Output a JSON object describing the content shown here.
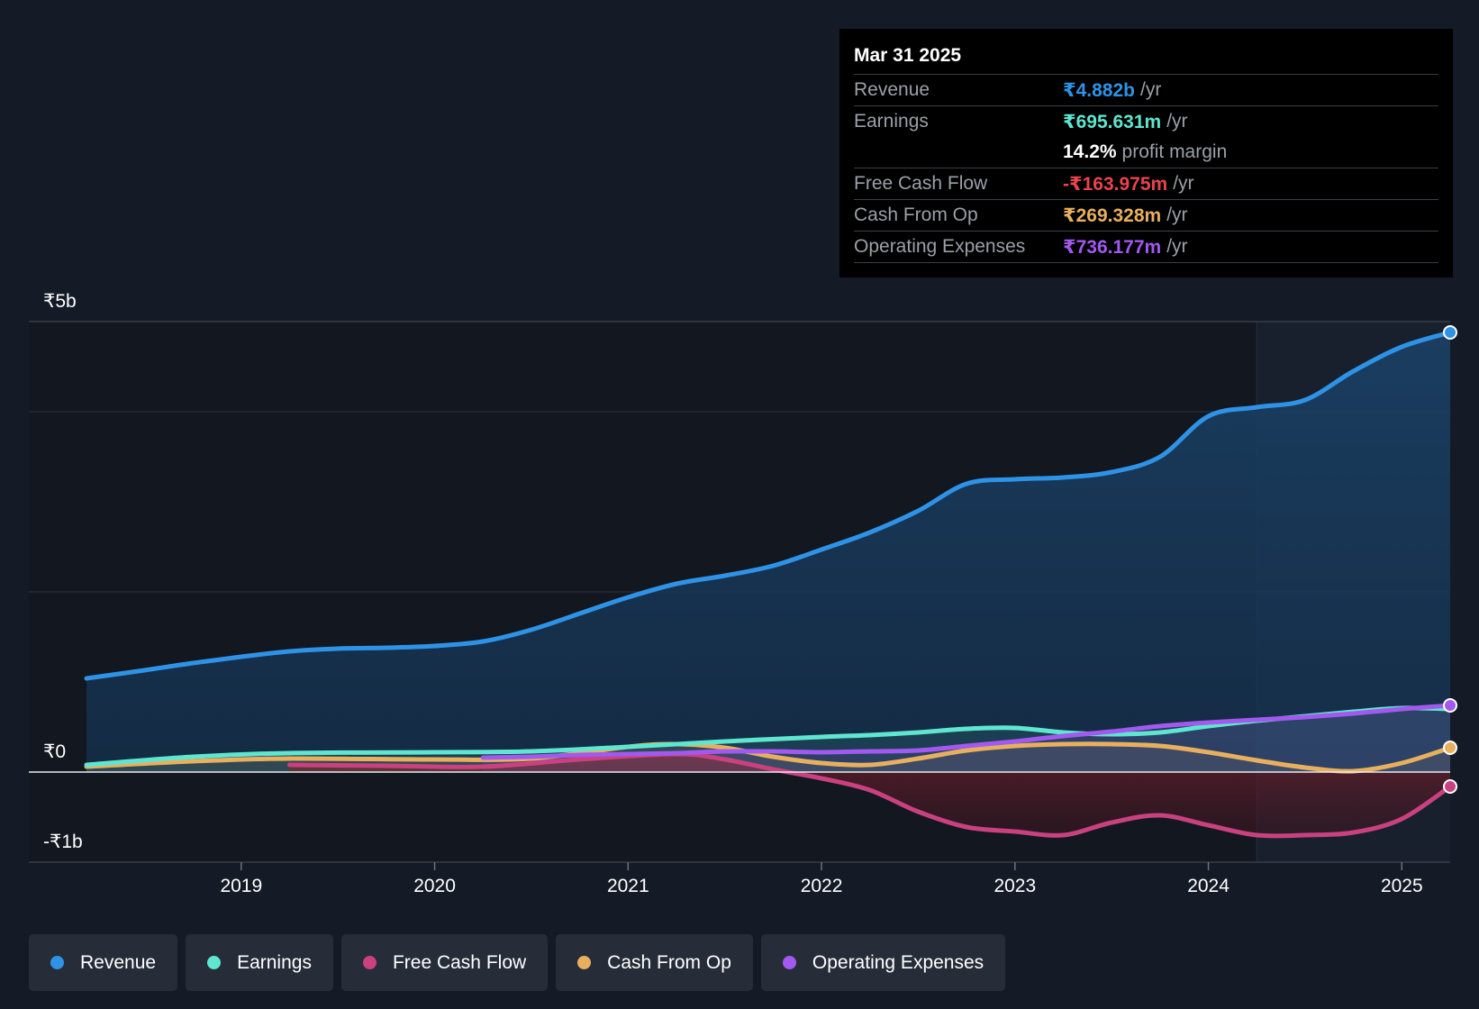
{
  "tooltip": {
    "date": "Mar 31 2025",
    "rows": [
      {
        "label": "Revenue",
        "value": "₹4.882b",
        "unit": "/yr",
        "color": "#2e93e6"
      },
      {
        "label": "Earnings",
        "value": "₹695.631m",
        "unit": "/yr",
        "color": "#5ee6d0"
      },
      {
        "label": "",
        "value": "14.2%",
        "unit": "profit margin",
        "color": "#ffffff"
      },
      {
        "label": "Free Cash Flow",
        "value": "-₹163.975m",
        "unit": "/yr",
        "color": "#e8434f"
      },
      {
        "label": "Cash From Op",
        "value": "₹269.328m",
        "unit": "/yr",
        "color": "#e8b05e"
      },
      {
        "label": "Operating Expenses",
        "value": "₹736.177m",
        "unit": "/yr",
        "color": "#a259f0"
      }
    ]
  },
  "legend": [
    {
      "label": "Revenue",
      "color": "#2e93e6"
    },
    {
      "label": "Earnings",
      "color": "#5ee6d0"
    },
    {
      "label": "Free Cash Flow",
      "color": "#c9417f"
    },
    {
      "label": "Cash From Op",
      "color": "#e8b05e"
    },
    {
      "label": "Operating Expenses",
      "color": "#a259f0"
    }
  ],
  "chart_data": {
    "type": "line",
    "title": "",
    "xlabel": "",
    "ylabel": "",
    "xlim": [
      2018.2,
      2025.25
    ],
    "ylim": [
      -1,
      5
    ],
    "ytick_labels": [
      {
        "value": 5,
        "label": "₹5b"
      },
      {
        "value": 0,
        "label": "₹0"
      },
      {
        "value": -1,
        "label": "-₹1b"
      }
    ],
    "xtick_labels": [
      {
        "value": 2019,
        "label": "2019"
      },
      {
        "value": 2020,
        "label": "2020"
      },
      {
        "value": 2021,
        "label": "2021"
      },
      {
        "value": 2022,
        "label": "2022"
      },
      {
        "value": 2023,
        "label": "2023"
      },
      {
        "value": 2024,
        "label": "2024"
      },
      {
        "value": 2025,
        "label": "2025"
      }
    ],
    "highlight_start": 2024.25,
    "series": [
      {
        "name": "Revenue",
        "color": "#2e93e6",
        "fill": true,
        "x": [
          2018.2,
          2018.5,
          2018.75,
          2019.0,
          2019.25,
          2019.5,
          2019.75,
          2020.0,
          2020.25,
          2020.5,
          2020.75,
          2021.0,
          2021.25,
          2021.5,
          2021.75,
          2022.0,
          2022.25,
          2022.5,
          2022.75,
          2023.0,
          2023.25,
          2023.5,
          2023.75,
          2024.0,
          2024.25,
          2024.5,
          2024.75,
          2025.0,
          2025.25
        ],
        "y": [
          1.04,
          1.13,
          1.21,
          1.28,
          1.34,
          1.37,
          1.38,
          1.4,
          1.45,
          1.58,
          1.76,
          1.94,
          2.09,
          2.18,
          2.29,
          2.47,
          2.66,
          2.9,
          3.2,
          3.25,
          3.27,
          3.33,
          3.5,
          3.95,
          4.05,
          4.13,
          4.45,
          4.72,
          4.88
        ]
      },
      {
        "name": "Earnings",
        "color": "#5ee6d0",
        "fill": true,
        "x": [
          2018.2,
          2018.75,
          2019.25,
          2020.0,
          2020.5,
          2021.0,
          2021.5,
          2022.0,
          2022.25,
          2022.5,
          2022.75,
          2023.0,
          2023.25,
          2023.5,
          2023.75,
          2024.0,
          2024.25,
          2024.5,
          2024.75,
          2025.0,
          2025.25
        ],
        "y": [
          0.08,
          0.17,
          0.21,
          0.22,
          0.23,
          0.28,
          0.34,
          0.39,
          0.41,
          0.44,
          0.48,
          0.49,
          0.44,
          0.42,
          0.44,
          0.51,
          0.57,
          0.62,
          0.67,
          0.71,
          0.7
        ]
      },
      {
        "name": "Free Cash Flow",
        "color": "#c9417f",
        "fill": true,
        "x": [
          2019.25,
          2019.75,
          2020.25,
          2020.75,
          2021.25,
          2021.5,
          2021.75,
          2022.0,
          2022.25,
          2022.5,
          2022.75,
          2023.0,
          2023.25,
          2023.5,
          2023.75,
          2024.0,
          2024.25,
          2024.5,
          2024.75,
          2025.0,
          2025.25
        ],
        "y": [
          0.08,
          0.07,
          0.06,
          0.14,
          0.2,
          0.14,
          0.03,
          -0.07,
          -0.2,
          -0.44,
          -0.61,
          -0.66,
          -0.7,
          -0.56,
          -0.48,
          -0.59,
          -0.7,
          -0.7,
          -0.67,
          -0.52,
          -0.16
        ]
      },
      {
        "name": "Cash From Op",
        "color": "#e8b05e",
        "fill": true,
        "x": [
          2018.2,
          2018.75,
          2019.25,
          2020.0,
          2020.5,
          2021.0,
          2021.25,
          2021.5,
          2021.75,
          2022.0,
          2022.25,
          2022.5,
          2022.75,
          2023.0,
          2023.25,
          2023.5,
          2023.75,
          2024.0,
          2024.25,
          2024.5,
          2024.75,
          2025.0,
          2025.25
        ],
        "y": [
          0.06,
          0.12,
          0.15,
          0.14,
          0.15,
          0.28,
          0.31,
          0.27,
          0.17,
          0.1,
          0.08,
          0.15,
          0.24,
          0.29,
          0.31,
          0.31,
          0.29,
          0.22,
          0.13,
          0.05,
          0.01,
          0.1,
          0.27
        ]
      },
      {
        "name": "Operating Expenses",
        "color": "#a259f0",
        "fill": true,
        "x": [
          2020.25,
          2020.5,
          2020.75,
          2021.0,
          2021.25,
          2021.5,
          2021.75,
          2022.0,
          2022.25,
          2022.5,
          2022.75,
          2023.0,
          2023.25,
          2023.5,
          2023.75,
          2024.0,
          2024.25,
          2024.5,
          2024.75,
          2025.0,
          2025.25
        ],
        "y": [
          0.16,
          0.17,
          0.19,
          0.2,
          0.21,
          0.23,
          0.23,
          0.22,
          0.23,
          0.24,
          0.29,
          0.34,
          0.4,
          0.45,
          0.51,
          0.55,
          0.58,
          0.61,
          0.65,
          0.7,
          0.74
        ]
      }
    ]
  }
}
